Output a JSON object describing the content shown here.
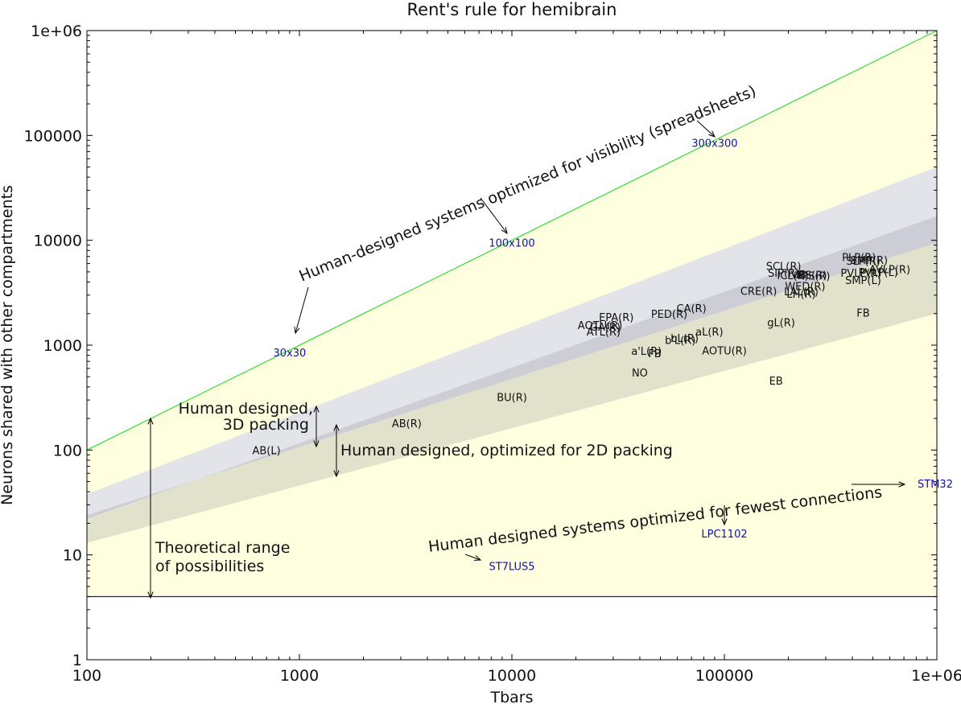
{
  "chart_data": {
    "type": "scatter",
    "title": "Rent's rule for hemibrain",
    "xlabel": "Tbars",
    "ylabel": "Neurons shared with other compartments",
    "xscale": "log",
    "yscale": "log",
    "xlim": [
      100,
      1000000
    ],
    "ylim": [
      1,
      1000000
    ],
    "x_ticks": [
      "100",
      "1000",
      "10000",
      "100000",
      "1e+06"
    ],
    "y_ticks": [
      "1",
      "10",
      "100",
      "1000",
      "10000",
      "100000",
      "1e+06"
    ],
    "grid": false,
    "colors": {
      "upper_line": "#33dd33",
      "lower_line": "#1a1aa0",
      "theoretical_fill": "#ffffe0",
      "band_3d_fill": "#e3e3ea",
      "band_2d_fill": "#e2e2cc",
      "band_overlap_fill": "#cdcdd6",
      "reference_text": "#1010b0"
    },
    "lines": [
      {
        "role": "upper bound",
        "x": [
          100,
          1000000
        ],
        "y": [
          100,
          1000000
        ]
      },
      {
        "role": "lower bound",
        "x": [
          100,
          1000000
        ],
        "y": [
          4,
          4
        ]
      }
    ],
    "bands": [
      {
        "role": "3D packing",
        "x": [
          100,
          1000000
        ],
        "y_low": [
          24,
          9500
        ],
        "y_high": [
          38,
          50000
        ]
      },
      {
        "role": "2D packing",
        "x": [
          100,
          1000000
        ],
        "y_low": [
          13,
          2000
        ],
        "y_high": [
          22,
          17000
        ]
      }
    ],
    "regions": [
      {
        "label": "AB(L)",
        "x": 700,
        "y": 100
      },
      {
        "label": "AB(R)",
        "x": 3200,
        "y": 180
      },
      {
        "label": "BU(R)",
        "x": 10000,
        "y": 320
      },
      {
        "label": "NO",
        "x": 40000,
        "y": 550
      },
      {
        "label": "a'L(R)",
        "x": 43000,
        "y": 880
      },
      {
        "label": "FB",
        "x": 47000,
        "y": 840
      },
      {
        "label": "EB",
        "x": 175000,
        "y": 460
      },
      {
        "label": "ATL(R)",
        "x": 27000,
        "y": 1350
      },
      {
        "label": "GA(R)",
        "x": 27500,
        "y": 1500
      },
      {
        "label": "AOTU(R)",
        "x": 26000,
        "y": 1550
      },
      {
        "label": "EPA(R)",
        "x": 31000,
        "y": 1850
      },
      {
        "label": "PED(R)",
        "x": 55000,
        "y": 2000
      },
      {
        "label": "CA(R)",
        "x": 70000,
        "y": 2250
      },
      {
        "label": "b'L(R)",
        "x": 62000,
        "y": 1120
      },
      {
        "label": "bL(R)",
        "x": 65000,
        "y": 1170
      },
      {
        "label": "aL(R)",
        "x": 85000,
        "y": 1350
      },
      {
        "label": "AOTU(R)",
        "x": 100000,
        "y": 890
      },
      {
        "label": "gL(R)",
        "x": 185000,
        "y": 1650
      },
      {
        "label": "CRE(R)",
        "x": 145000,
        "y": 3300
      },
      {
        "label": "SCL(R)",
        "x": 190000,
        "y": 5700
      },
      {
        "label": "SIP(R)",
        "x": 190000,
        "y": 4900
      },
      {
        "label": "ICL(R)",
        "x": 210000,
        "y": 4650
      },
      {
        "label": "IB",
        "x": 230000,
        "y": 4750
      },
      {
        "label": "PS(R)",
        "x": 270000,
        "y": 4600
      },
      {
        "label": "VES(R)",
        "x": 250000,
        "y": 4700
      },
      {
        "label": "WED(R)",
        "x": 240000,
        "y": 3650
      },
      {
        "label": "LAL(R)",
        "x": 230000,
        "y": 3280
      },
      {
        "label": "LH(R)",
        "x": 230000,
        "y": 3100
      },
      {
        "label": "PLP(R)",
        "x": 430000,
        "y": 6900
      },
      {
        "label": "SLP(R)",
        "x": 450000,
        "y": 6400
      },
      {
        "label": "SMP(R)",
        "x": 480000,
        "y": 6500
      },
      {
        "label": "AVLP(R)",
        "x": 600000,
        "y": 5300
      },
      {
        "label": "PVLP(R)",
        "x": 440000,
        "y": 4900
      },
      {
        "label": "PVLP(L)",
        "x": 530000,
        "y": 5000
      },
      {
        "label": "SMP(L)",
        "x": 450000,
        "y": 4200
      },
      {
        "label": "FB",
        "x": 450000,
        "y": 2050
      }
    ],
    "reference_points": [
      {
        "label": "300x300",
        "x": 90000,
        "y": 85000
      },
      {
        "label": "100x100",
        "x": 10000,
        "y": 9500
      },
      {
        "label": "30x30",
        "x": 900,
        "y": 850
      },
      {
        "label": "STM32",
        "x": 1000000,
        "y": 48
      },
      {
        "label": "LPC1102",
        "x": 100000,
        "y": 16
      },
      {
        "label": "ST7LUS5",
        "x": 10000,
        "y": 7.8
      }
    ],
    "annotations": {
      "spreadsheets": "Human-designed systems optimized for visibility (spreadsheets)",
      "packing_3d_line1": "Human designed,",
      "packing_3d_line2": "3D packing",
      "packing_2d": "Human designed, optimized for 2D packing",
      "fewest": "Human designed systems optimized for fewest connections",
      "theoretical_line1": "Theoretical range",
      "theoretical_line2": "of possibilities"
    }
  }
}
